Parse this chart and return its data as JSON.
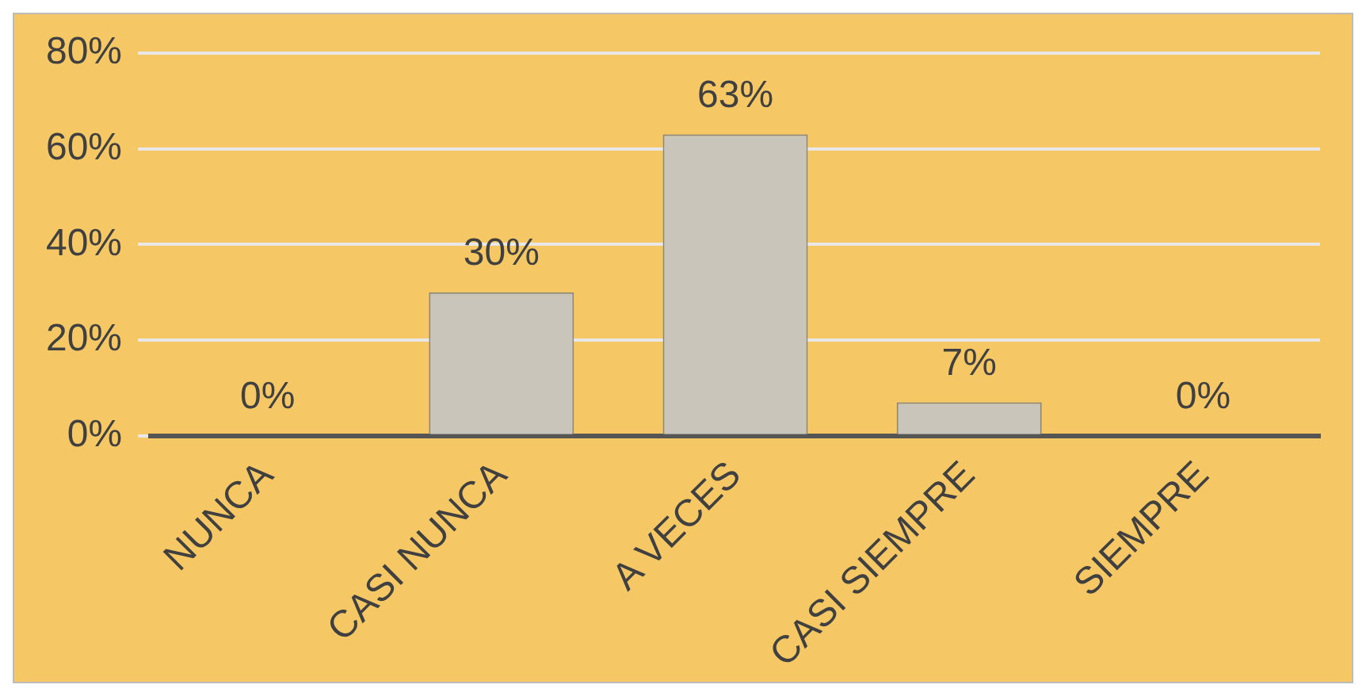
{
  "chart_data": {
    "type": "bar",
    "categories": [
      "NUNCA",
      "CASI NUNCA",
      "A VECES",
      "CASI SIEMPRE",
      "SIEMPRE"
    ],
    "values": [
      0,
      30,
      63,
      7,
      0
    ],
    "value_labels": [
      "0%",
      "30%",
      "63%",
      "7%",
      "0%"
    ],
    "color": "#c9c5bb",
    "ylim": [
      0,
      80
    ],
    "yticks": [
      {
        "value": 0,
        "label": "0%"
      },
      {
        "value": 20,
        "label": "20%"
      },
      {
        "value": 40,
        "label": "40%"
      },
      {
        "value": 60,
        "label": "60%"
      },
      {
        "value": 80,
        "label": "80%"
      }
    ],
    "grid": "y",
    "legend": false
  }
}
